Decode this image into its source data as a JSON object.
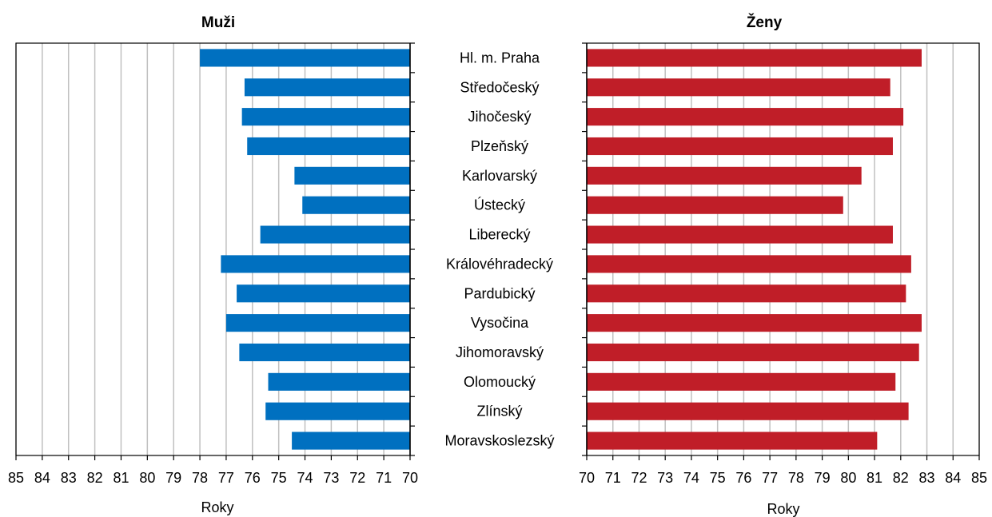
{
  "chart_data": [
    {
      "type": "bar",
      "orientation": "horizontal",
      "title": "Muži",
      "xlabel": "Roky",
      "xlim": [
        70,
        85
      ],
      "x_reversed": true,
      "grid": true,
      "color": "#0070C0",
      "categories": [
        "Hl. m. Praha",
        "Středočeský",
        "Jihočeský",
        "Plzeňský",
        "Karlovarský",
        "Ústecký",
        "Liberecký",
        "Královéhradecký",
        "Pardubický",
        "Vysočina",
        "Jihomoravský",
        "Olomoucký",
        "Zlínský",
        "Moravskoslezský"
      ],
      "values": [
        78.0,
        76.3,
        76.4,
        76.2,
        74.4,
        74.1,
        75.7,
        77.2,
        76.6,
        77.0,
        76.5,
        75.4,
        75.5,
        74.5
      ],
      "ticks": [
        "85",
        "84",
        "83",
        "82",
        "81",
        "80",
        "79",
        "78",
        "77",
        "76",
        "75",
        "74",
        "73",
        "72",
        "71",
        "70"
      ]
    },
    {
      "type": "bar",
      "orientation": "horizontal",
      "title": "Ženy",
      "xlabel": "Roky",
      "xlim": [
        70,
        85
      ],
      "x_reversed": false,
      "grid": true,
      "color": "#C01E28",
      "categories": [
        "Hl. m. Praha",
        "Středočeský",
        "Jihočeský",
        "Plzeňský",
        "Karlovarský",
        "Ústecký",
        "Liberecký",
        "Královéhradecký",
        "Pardubický",
        "Vysočina",
        "Jihomoravský",
        "Olomoucký",
        "Zlínský",
        "Moravskoslezský"
      ],
      "values": [
        82.8,
        81.6,
        82.1,
        81.7,
        80.5,
        79.8,
        81.7,
        82.4,
        82.2,
        82.8,
        82.7,
        81.8,
        82.3,
        81.1
      ],
      "ticks": [
        "70",
        "71",
        "72",
        "73",
        "74",
        "75",
        "76",
        "77",
        "78",
        "79",
        "80",
        "81",
        "82",
        "83",
        "84",
        "85"
      ]
    }
  ]
}
